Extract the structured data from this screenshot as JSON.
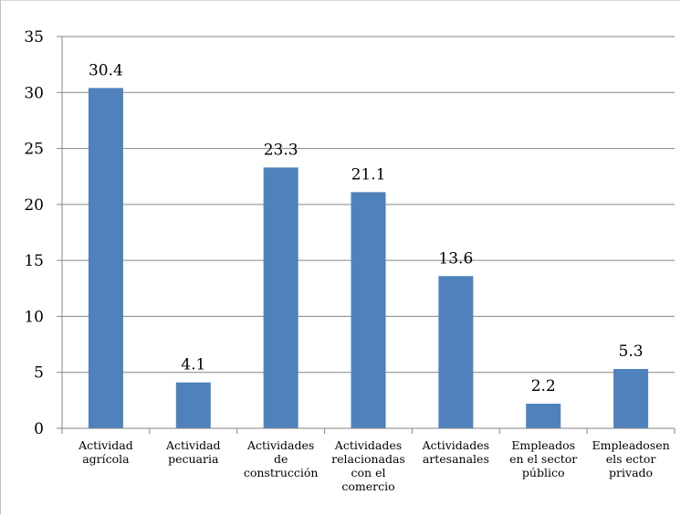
{
  "chart_data": {
    "type": "bar",
    "categories": [
      [
        "Actividad",
        "agrícola"
      ],
      [
        "Actividad",
        "pecuaria"
      ],
      [
        "Actividades",
        "de",
        "construcción"
      ],
      [
        "Actividades",
        "relacionadas",
        "con el",
        "comercio"
      ],
      [
        "Actividades",
        "artesanales"
      ],
      [
        "Empleados",
        "en el sector",
        "público"
      ],
      [
        "Empleadosen",
        "els ector",
        "privado"
      ]
    ],
    "values": [
      30.4,
      4.1,
      23.3,
      21.1,
      13.6,
      2.2,
      5.3
    ],
    "value_labels": [
      "30.4",
      "4.1",
      "23.3",
      "21.1",
      "13.6",
      "2.2",
      "5.3"
    ],
    "yticks": [
      "0",
      "5",
      "10",
      "15",
      "20",
      "25",
      "30",
      "35"
    ],
    "ylim": [
      0,
      35
    ],
    "grid": true,
    "legend": "none",
    "bar_color": "#4f81bd",
    "grid_color": "#868686"
  }
}
